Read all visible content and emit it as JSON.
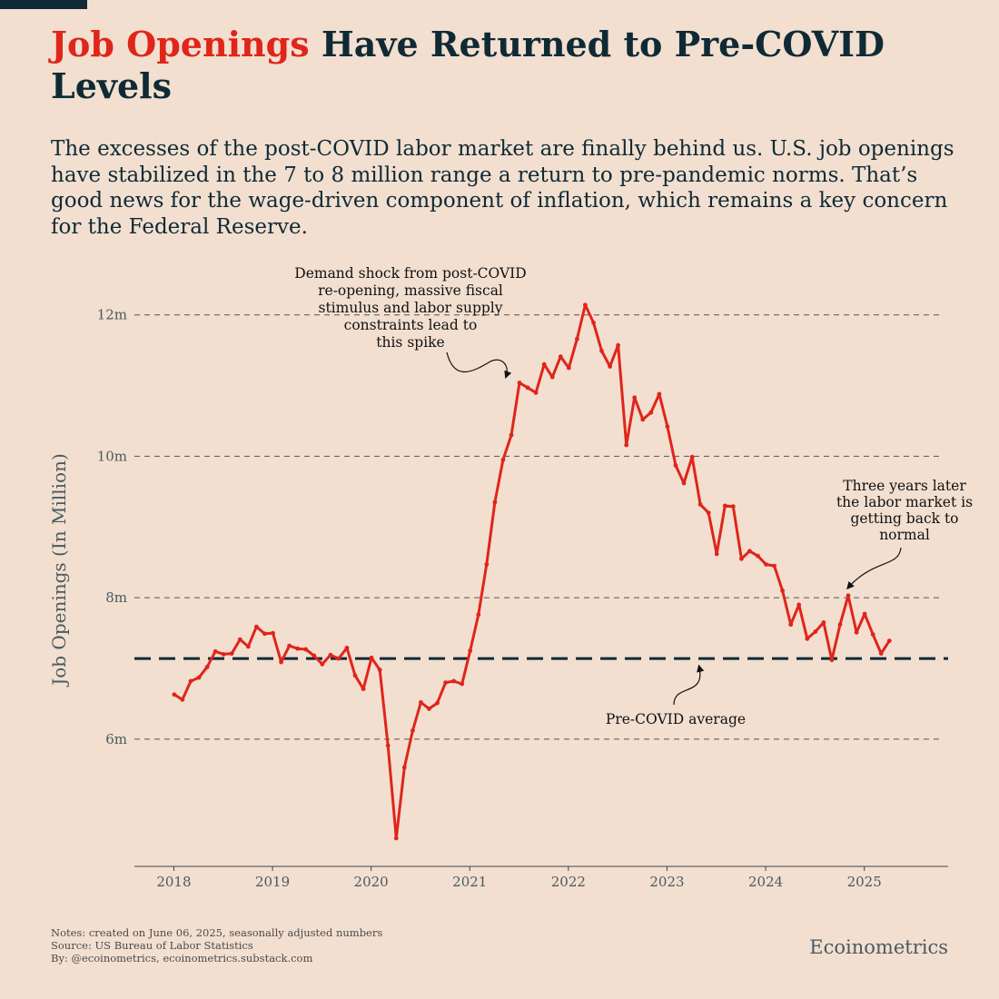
{
  "header": {
    "title_accent": "Job Openings",
    "title_rest": "Have Returned to Pre-COVID Levels",
    "subtitle": "The excesses of the post-COVID labor market are finally behind us. U.S. job openings have stabilized in the 7 to 8 million range a return to pre-pandemic norms. That’s good news for the wage-driven component of inflation, which remains a key concern for the Federal Reserve."
  },
  "colors": {
    "background": "#f2dfd0",
    "series": "#e0251b",
    "reference_line": "#0f2a35",
    "text": "#0f2a35",
    "axis_text": "#4a5a60"
  },
  "chart_data": {
    "type": "line",
    "title": "Job Openings Have Returned to Pre-COVID Levels",
    "xlabel": "",
    "ylabel": "Job Openings (In Million)",
    "xlim": [
      2017.6,
      2025.85
    ],
    "ylim": [
      4.2,
      12.6
    ],
    "grid": "horizontal dashed",
    "yticks": [
      {
        "value": 6,
        "label": "6m"
      },
      {
        "value": 8,
        "label": "8m"
      },
      {
        "value": 10,
        "label": "10m"
      },
      {
        "value": 12,
        "label": "12m"
      }
    ],
    "xticks": [
      {
        "value": 2018,
        "label": "2018"
      },
      {
        "value": 2019,
        "label": "2019"
      },
      {
        "value": 2020,
        "label": "2020"
      },
      {
        "value": 2021,
        "label": "2021"
      },
      {
        "value": 2022,
        "label": "2022"
      },
      {
        "value": 2023,
        "label": "2023"
      },
      {
        "value": 2024,
        "label": "2024"
      },
      {
        "value": 2025,
        "label": "2025"
      }
    ],
    "series": [
      {
        "name": "Job Openings",
        "start": "2018-01",
        "frequency": "monthly",
        "values": [
          6.63,
          6.56,
          6.82,
          6.87,
          7.02,
          7.24,
          7.2,
          7.21,
          7.41,
          7.31,
          7.59,
          7.49,
          7.5,
          7.09,
          7.32,
          7.28,
          7.27,
          7.18,
          7.06,
          7.19,
          7.14,
          7.29,
          6.9,
          6.71,
          7.15,
          6.98,
          5.91,
          4.6,
          5.6,
          6.12,
          6.52,
          6.43,
          6.51,
          6.8,
          6.82,
          6.78,
          7.25,
          7.76,
          8.47,
          9.35,
          9.95,
          10.3,
          11.04,
          10.97,
          10.9,
          11.3,
          11.12,
          11.41,
          11.25,
          11.66,
          12.14,
          11.89,
          11.49,
          11.27,
          11.57,
          10.16,
          10.83,
          10.52,
          10.62,
          10.88,
          10.42,
          9.87,
          9.62,
          9.99,
          9.32,
          9.2,
          8.62,
          9.3,
          9.29,
          8.55,
          8.66,
          8.59,
          8.47,
          8.45,
          8.1,
          7.62,
          7.9,
          7.42,
          7.52,
          7.65,
          7.12,
          7.62,
          8.03,
          7.51,
          7.77,
          7.48,
          7.21,
          7.39
        ]
      }
    ],
    "reference_lines": [
      {
        "name": "Pre-COVID average",
        "value": 7.14
      }
    ],
    "annotations": [
      {
        "id": "spike",
        "lines": [
          "Demand shock from post-COVID",
          "re-opening, massive fiscal",
          "stimulus and labor supply",
          "constraints lead to",
          "this spike"
        ],
        "target_x": 2021.42,
        "target_y": 11.04
      },
      {
        "id": "normal",
        "lines": [
          "Three years later",
          "the labor market is",
          "getting back to",
          "normal"
        ],
        "target_x": 2024.83,
        "target_y": 8.03
      },
      {
        "id": "precovid",
        "lines": [
          "Pre-COVID average"
        ],
        "target_x": 2023.25,
        "target_y": 7.14
      }
    ]
  },
  "footer": {
    "notes": "Notes: created on June 06, 2025, seasonally adjusted numbers",
    "source": "Source: US Bureau of Labor Statistics",
    "by": "By: @ecoinometrics, ecoinometrics.substack.com",
    "brand": "Ecoinometrics"
  }
}
